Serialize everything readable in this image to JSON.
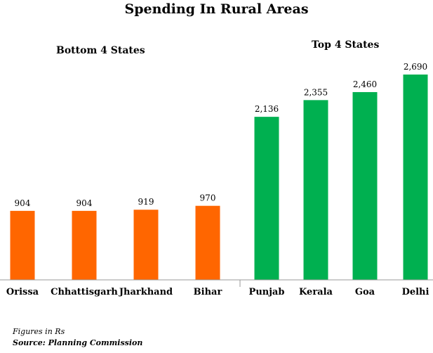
{
  "chart_data": {
    "type": "bar",
    "title": "Spending In Rural Areas",
    "groups": [
      {
        "name": "Bottom 4 States",
        "color": "#ff6600",
        "categories": [
          "Orissa",
          "Chhattisgarh",
          "Jharkhand",
          "Bihar"
        ],
        "values": [
          904,
          904,
          919,
          970
        ],
        "labels": [
          "904",
          "904",
          "919",
          "970"
        ]
      },
      {
        "name": "Top 4 States",
        "color": "#00b050",
        "categories": [
          "Punjab",
          "Kerala",
          "Goa",
          "Delhi"
        ],
        "values": [
          2136,
          2355,
          2460,
          2690
        ],
        "labels": [
          "2,136",
          "2,355",
          "2,460",
          "2,690"
        ]
      }
    ],
    "grid": false
  },
  "footnotes": {
    "units": "Figures in Rs",
    "source": "Source: Planning Commission"
  }
}
